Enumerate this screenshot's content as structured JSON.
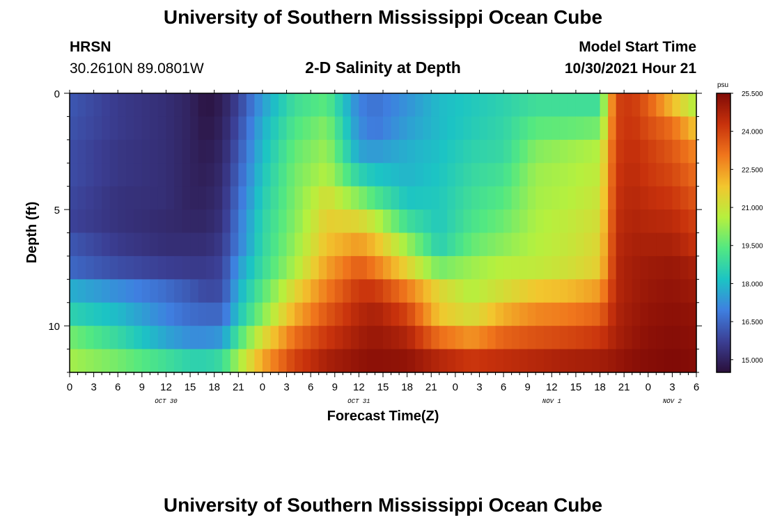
{
  "header": {
    "title": "University of Southern Mississippi Ocean Cube",
    "station": "HRSN",
    "coords": "30.2610N  89.0801W",
    "plot_title": "2-D Salinity at Depth",
    "model_label": "Model Start Time",
    "model_time": "10/30/2021 Hour 21"
  },
  "footer": {
    "title": "University of Southern Mississippi Ocean Cube"
  },
  "colors": {
    "ramp": [
      "#2a0f3a",
      "#3b3f94",
      "#3f7fe0",
      "#1cc4c4",
      "#52e882",
      "#b6f03e",
      "#f2c62e",
      "#f0761c",
      "#c8320c",
      "#800a06"
    ]
  },
  "chart_data": {
    "type": "heatmap",
    "title": "2-D Salinity at Depth",
    "xlabel": "Forecast Time(Z)",
    "ylabel": "Depth (ft)",
    "x_ticks": [
      "0",
      "3",
      "6",
      "9",
      "12",
      "15",
      "18",
      "21",
      "0",
      "3",
      "6",
      "9",
      "12",
      "15",
      "18",
      "21",
      "0",
      "3",
      "6",
      "9",
      "12",
      "15",
      "18",
      "21",
      "0",
      "3",
      "6"
    ],
    "date_labels": [
      {
        "label": "OCT 30",
        "hour": 12
      },
      {
        "label": "OCT 31",
        "hour": 36
      },
      {
        "label": "NOV 1",
        "hour": 60
      },
      {
        "label": "NOV 2",
        "hour": 75
      }
    ],
    "x_range_hours": [
      0,
      78
    ],
    "y_ticks": [
      "0",
      "5",
      "10"
    ],
    "y_range_ft": [
      0,
      12
    ],
    "colorbar": {
      "unit": "psu",
      "range": [
        14.5,
        25.5
      ],
      "ticks": [
        "25.500",
        "24.000",
        "22.500",
        "21.000",
        "19.500",
        "18.000",
        "16.500",
        "15.000"
      ]
    },
    "depth_rows_ft": [
      0.5,
      1.5,
      2.5,
      3.5,
      4.5,
      5.5,
      6.5,
      7.5,
      8.5,
      9.5,
      10.5,
      11.5
    ],
    "anchor_hours": [
      0,
      6,
      12,
      15,
      17,
      19,
      21,
      24,
      28,
      32,
      36,
      38,
      42,
      46,
      50,
      54,
      58,
      62,
      66,
      68,
      70,
      72,
      75,
      78
    ],
    "values_psu": [
      [
        16.2,
        15.6,
        15.3,
        15.0,
        14.6,
        14.9,
        15.8,
        17.5,
        19.0,
        19.5,
        17.0,
        16.7,
        17.3,
        18.0,
        18.3,
        18.6,
        19.0,
        19.0,
        19.0,
        24.0,
        24.2,
        23.5,
        22.0,
        20.5
      ],
      [
        16.1,
        15.6,
        15.3,
        15.0,
        14.7,
        15.0,
        16.0,
        17.8,
        19.3,
        20.0,
        17.2,
        16.8,
        17.5,
        18.0,
        18.4,
        18.7,
        19.5,
        19.6,
        19.8,
        24.0,
        24.3,
        23.8,
        23.2,
        21.8
      ],
      [
        16.0,
        15.5,
        15.3,
        15.0,
        14.8,
        15.1,
        16.2,
        18.0,
        19.6,
        20.3,
        17.6,
        17.4,
        17.8,
        18.1,
        18.6,
        18.8,
        20.0,
        20.3,
        20.6,
        24.1,
        24.4,
        24.1,
        23.6,
        22.8
      ],
      [
        16.0,
        15.5,
        15.3,
        15.0,
        14.9,
        15.2,
        16.4,
        18.2,
        19.8,
        20.6,
        18.6,
        18.2,
        17.9,
        18.2,
        18.8,
        19.1,
        20.3,
        20.5,
        20.8,
        24.2,
        24.5,
        24.2,
        23.9,
        23.2
      ],
      [
        15.9,
        15.4,
        15.3,
        15.0,
        15.0,
        15.3,
        16.6,
        18.4,
        19.9,
        21.2,
        20.0,
        19.3,
        18.2,
        18.3,
        19.0,
        19.4,
        20.4,
        20.6,
        21.0,
        24.3,
        24.6,
        24.4,
        24.2,
        23.6
      ],
      [
        15.8,
        15.4,
        15.2,
        15.1,
        15.1,
        15.4,
        16.8,
        18.6,
        20.0,
        21.6,
        21.4,
        20.8,
        19.0,
        18.3,
        19.2,
        19.7,
        20.5,
        20.8,
        21.2,
        24.4,
        24.7,
        24.6,
        24.5,
        24.0
      ],
      [
        16.2,
        15.6,
        15.3,
        15.3,
        15.3,
        15.6,
        16.9,
        18.7,
        20.2,
        21.9,
        22.5,
        22.0,
        20.3,
        18.5,
        19.6,
        20.1,
        20.6,
        20.9,
        21.4,
        24.5,
        24.8,
        24.8,
        24.8,
        24.3
      ],
      [
        16.5,
        16.0,
        15.7,
        15.6,
        15.6,
        15.8,
        17.4,
        18.9,
        20.5,
        22.4,
        23.5,
        23.0,
        21.5,
        19.8,
        20.3,
        20.7,
        20.8,
        21.1,
        21.6,
        24.6,
        24.9,
        25.0,
        25.1,
        24.8
      ],
      [
        17.8,
        17.2,
        16.6,
        16.2,
        15.9,
        16.0,
        17.8,
        19.4,
        21.4,
        23.0,
        24.2,
        24.2,
        23.0,
        21.4,
        20.6,
        21.2,
        21.8,
        22.0,
        22.5,
        24.6,
        24.9,
        25.1,
        25.2,
        25.0
      ],
      [
        18.6,
        18.0,
        17.0,
        16.6,
        16.5,
        16.5,
        18.2,
        20.0,
        22.2,
        23.6,
        24.6,
        24.8,
        24.0,
        21.8,
        21.2,
        22.2,
        22.8,
        23.0,
        23.4,
        24.7,
        25.0,
        25.2,
        25.3,
        25.2
      ],
      [
        19.8,
        18.8,
        17.6,
        17.2,
        17.2,
        17.4,
        19.2,
        21.2,
        23.2,
        24.2,
        24.9,
        25.1,
        24.7,
        23.2,
        22.6,
        23.4,
        23.7,
        23.9,
        24.2,
        24.8,
        25.1,
        25.3,
        25.4,
        25.3
      ],
      [
        20.4,
        19.8,
        19.0,
        18.6,
        18.6,
        18.9,
        20.4,
        22.3,
        24.0,
        24.8,
        25.2,
        25.3,
        25.2,
        24.6,
        24.2,
        24.4,
        24.6,
        24.8,
        24.9,
        25.1,
        25.3,
        25.4,
        25.5,
        25.4
      ]
    ]
  }
}
